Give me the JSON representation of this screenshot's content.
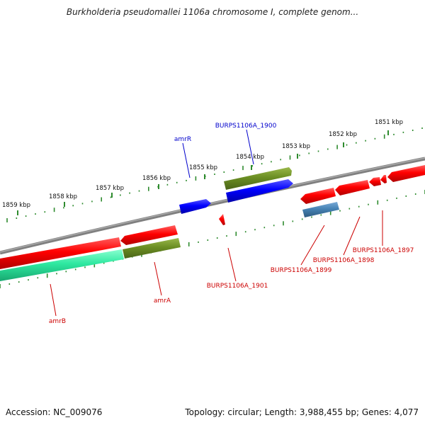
{
  "title": "Burkholderia pseudomallei 1106a chromosome I, complete genom...",
  "footer": {
    "accession": "Accession: NC_009076",
    "summary": "Topology: circular; Length: 3,988,455 bp; Genes: 4,077"
  },
  "scale_ticks": [
    {
      "label": "1851 kbp"
    },
    {
      "label": "1852 kbp"
    },
    {
      "label": "1853 kbp"
    },
    {
      "label": "1854 kbp"
    },
    {
      "label": "1855 kbp"
    },
    {
      "label": "1856 kbp"
    },
    {
      "label": "1857 kbp"
    },
    {
      "label": "1858 kbp"
    },
    {
      "label": "1859 kbp"
    }
  ],
  "gene_labels": [
    {
      "text": "BURPS1106A_1900",
      "color": "#0000cc"
    },
    {
      "text": "amrR",
      "color": "#0000cc"
    },
    {
      "text": "BURPS1106A_1897",
      "color": "#cc0000"
    },
    {
      "text": "BURPS1106A_1898",
      "color": "#cc0000"
    },
    {
      "text": "BURPS1106A_1899",
      "color": "#cc0000"
    },
    {
      "text": "BURPS1106A_1901",
      "color": "#cc0000"
    },
    {
      "text": "amrA",
      "color": "#cc0000"
    },
    {
      "text": "amrB",
      "color": "#cc0000"
    }
  ],
  "colors": {
    "backbone": "#808080",
    "tick_green": "#2e8b2e",
    "gene_red": "#ff0000",
    "gene_blue": "#0000ff",
    "gene_olive": "#6b8e23",
    "gene_teal": "#2ee8a0",
    "gene_steel": "#4682b4"
  }
}
